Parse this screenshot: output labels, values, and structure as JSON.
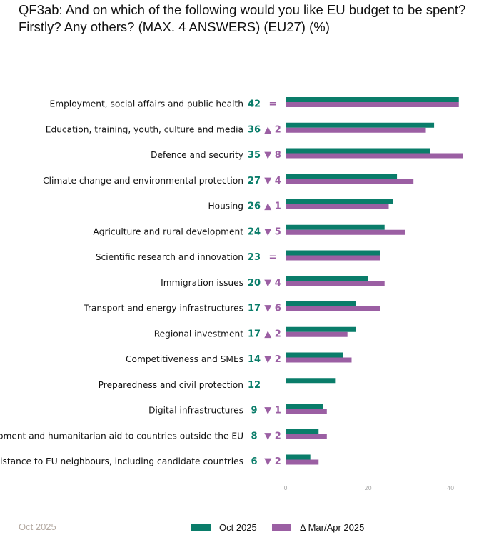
{
  "title": "QF3ab: And on which of the following would you like EU budget to be spent? Firstly? Any others? (MAX. 4 ANSWERS) (EU27) (%)",
  "footer_date": "Oct 2025",
  "colors": {
    "current": "#0a7d6a",
    "previous": "#9b5fa3"
  },
  "chart_data": {
    "type": "bar",
    "orientation": "horizontal",
    "title": "QF3ab: And on which of the following would you like EU budget to be spent? Firstly? Any others? (MAX. 4 ANSWERS) (EU27) (%)",
    "categories": [
      "Employment, social affairs and public health",
      "Education, training, youth, culture and media",
      "Defence and security",
      "Climate change and environmental protection",
      "Housing",
      "Agriculture and rural development",
      "Scientific research and innovation",
      "Immigration issues",
      "Transport and energy infrastructures",
      "Regional investment",
      "Competitiveness and SMEs",
      "Preparedness and civil protection",
      "Digital infrastructures",
      "Development and humanitarian aid to countries outside the EU",
      "Assistance to EU neighbours, including candidate countries"
    ],
    "series": [
      {
        "name": "Oct 2025",
        "values": [
          42,
          36,
          35,
          27,
          26,
          24,
          23,
          20,
          17,
          17,
          14,
          12,
          9,
          8,
          6
        ]
      },
      {
        "name": "Δ Mar/Apr 2025",
        "values": [
          42,
          34,
          43,
          31,
          25,
          29,
          23,
          24,
          23,
          15,
          16,
          null,
          10,
          10,
          8
        ]
      }
    ],
    "changes": [
      "=",
      "▲ 2",
      "▼ 8",
      "▼ 4",
      "▲ 1",
      "▼ 5",
      "=",
      "▼ 4",
      "▼ 6",
      "▲ 2",
      "▼ 2",
      "",
      "▼ 1",
      "▼ 2",
      "▼ 2"
    ],
    "xticks": [
      "0",
      "20",
      "40"
    ],
    "xlim": [
      0,
      50
    ],
    "legend": {
      "placement": "bottom",
      "entries": [
        "Oct 2025",
        "Δ Mar/Apr 2025"
      ]
    }
  }
}
